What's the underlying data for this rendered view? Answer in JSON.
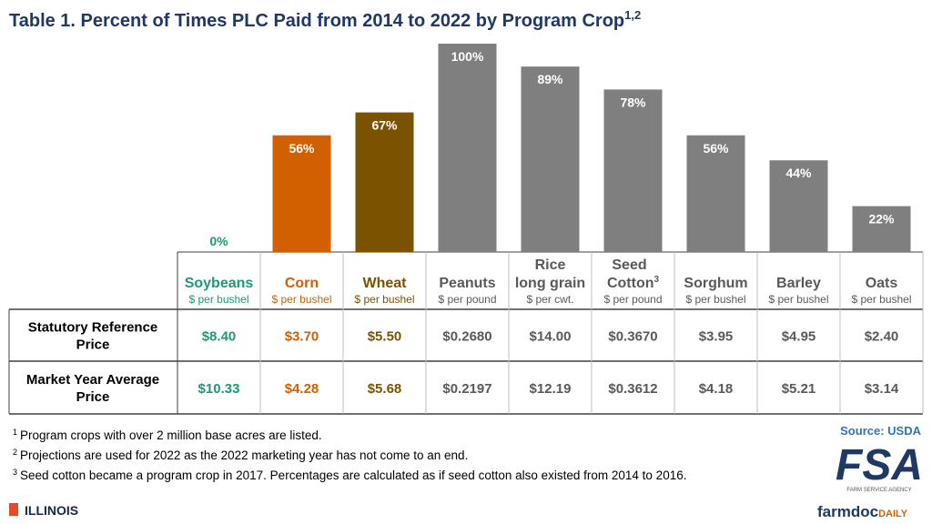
{
  "chart_data": {
    "type": "bar",
    "title": "Table 1. Percent of Times PLC Paid from 2014 to 2022 by Program Crop",
    "title_superscript": "1,2",
    "categories": [
      "Soybeans",
      "Corn",
      "Wheat",
      "Peanuts",
      "Rice\nlong grain",
      "Seed\nCotton",
      "Sorghum",
      "Barley",
      "Oats"
    ],
    "category_superscripts": [
      null,
      null,
      null,
      null,
      null,
      "3",
      null,
      null,
      null
    ],
    "units": [
      "$ per bushel",
      "$ per bushel",
      "$ per bushel",
      "$ per pound",
      "$ per cwt.",
      "$ per pound",
      "$ per bushel",
      "$ per bushel",
      "$ per bushel"
    ],
    "values": [
      0,
      56,
      67,
      100,
      89,
      78,
      56,
      44,
      22
    ],
    "value_labels": [
      "0%",
      "56%",
      "67%",
      "100%",
      "89%",
      "78%",
      "56%",
      "44%",
      "22%"
    ],
    "colors": [
      "#1a9a7a",
      "#d25f00",
      "#7a5200",
      "#7f7f7f",
      "#7f7f7f",
      "#7f7f7f",
      "#7f7f7f",
      "#7f7f7f",
      "#7f7f7f"
    ],
    "text_colors": [
      "#1a9a7a",
      "#d25f00",
      "#7a5200",
      "#595959",
      "#595959",
      "#595959",
      "#595959",
      "#595959",
      "#595959"
    ],
    "ylim": [
      0,
      100
    ],
    "rows": [
      {
        "label": "Statutory Reference\nPrice",
        "values": [
          "$8.40",
          "$3.70",
          "$5.50",
          "$0.2680",
          "$14.00",
          "$0.3670",
          "$3.95",
          "$4.95",
          "$2.40"
        ]
      },
      {
        "label": "Market Year Average\nPrice",
        "values": [
          "$10.33",
          "$4.28",
          "$5.68",
          "$0.2197",
          "$12.19",
          "$0.3612",
          "$4.18",
          "$5.21",
          "$3.14"
        ]
      }
    ],
    "footnotes": [
      {
        "mark": "1",
        "text": "Program crops with over 2 million base acres are listed."
      },
      {
        "mark": "2",
        "text": "Projections are used for 2022 as the 2022 marketing year has not come to an end."
      },
      {
        "mark": "3",
        "text": "Seed cotton became a program crop in 2017.  Percentages are calculated as if seed cotton also existed from 2014 to 2016."
      }
    ],
    "source": "Source: USDA",
    "branding": {
      "fsa": "FSA",
      "fsa_sub": "FARM SERVICE AGENCY",
      "farmdoc": "farmdoc",
      "daily": "DAILY",
      "illinois": "ILLINOIS"
    }
  }
}
